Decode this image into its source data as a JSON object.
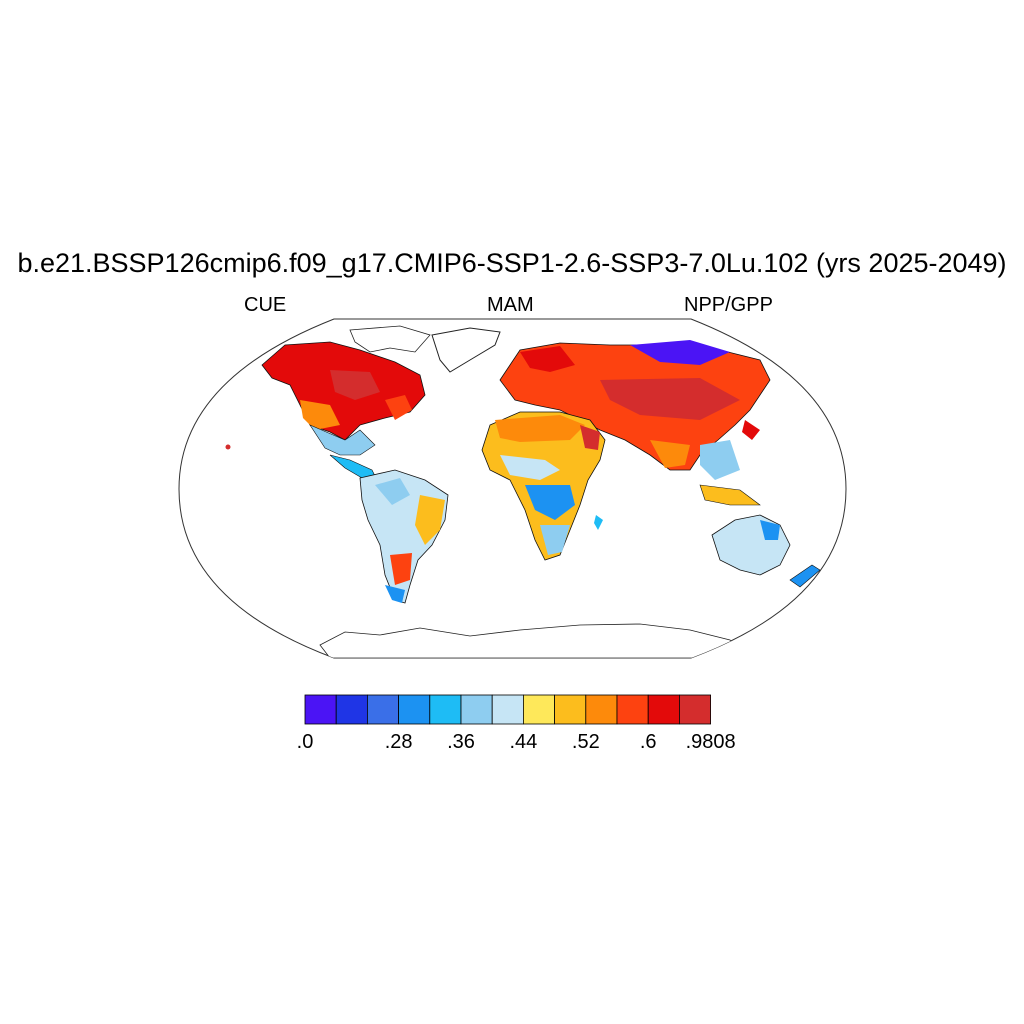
{
  "title": "b.e21.BSSP126cmip6.f09_g17.CMIP6-SSP1-2.6-SSP3-7.0Lu.102 (yrs 2025-2049)",
  "subtitles": {
    "left": "CUE",
    "center": "MAM",
    "right": "NPP/GPP"
  },
  "colorbar": {
    "colors": [
      "#4b14f5",
      "#1f35e6",
      "#3a6fe8",
      "#1c92f2",
      "#1ebcf5",
      "#8ecdf0",
      "#c6e5f5",
      "#fee85a",
      "#fcbd1d",
      "#fd8a0b",
      "#fd4210",
      "#e30a0a",
      "#d42d2d"
    ],
    "labels": [
      ".0",
      ".28",
      ".36",
      ".44",
      ".52",
      ".6",
      ".9808"
    ],
    "label_boundary_index": [
      0,
      3,
      5,
      7,
      9,
      11,
      13
    ]
  },
  "chart_data": {
    "type": "heatmap",
    "projection": "Robinson",
    "variable": "NPP/GPP",
    "season": "MAM",
    "range": [
      0.0,
      0.9808
    ],
    "regions": [
      {
        "name": "Canada / Alaska",
        "value_class": 11
      },
      {
        "name": "Eastern USA",
        "value_class": 10
      },
      {
        "name": "Western USA",
        "value_class": 8
      },
      {
        "name": "Central America",
        "value_class": 5
      },
      {
        "name": "Amazon",
        "value_class": 6
      },
      {
        "name": "Brazil highlands",
        "value_class": 8
      },
      {
        "name": "Patagonia",
        "value_class": 4
      },
      {
        "name": "Europe",
        "value_class": 10
      },
      {
        "name": "Scandinavia",
        "value_class": 11
      },
      {
        "name": "Siberia",
        "value_class": 1
      },
      {
        "name": "Central Asia",
        "value_class": 11
      },
      {
        "name": "Sahara / Sahel",
        "value_class": 8
      },
      {
        "name": "Central Africa",
        "value_class": 4
      },
      {
        "name": "Southern Africa",
        "value_class": 3
      },
      {
        "name": "India",
        "value_class": 6
      },
      {
        "name": "Southeast Asia",
        "value_class": 7
      },
      {
        "name": "Australia",
        "value_class": 5
      },
      {
        "name": "Antarctica",
        "value_class": -1
      }
    ]
  }
}
